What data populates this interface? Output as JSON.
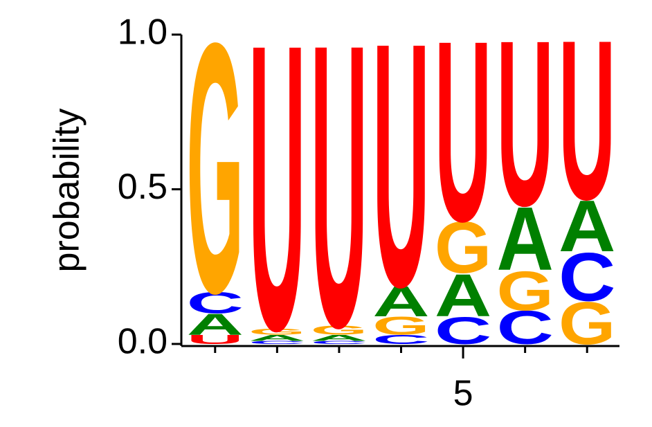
{
  "chart_data": {
    "type": "logo",
    "ylabel": "probability",
    "x": [
      1,
      2,
      3,
      4,
      5,
      6,
      7
    ],
    "series": [
      {
        "name": "A",
        "color": "#008000",
        "values": [
          0.07,
          0.02,
          0.02,
          0.1,
          0.14,
          0.21,
          0.17
        ]
      },
      {
        "name": "C",
        "color": "#0000ff",
        "values": [
          0.07,
          0.01,
          0.01,
          0.03,
          0.09,
          0.11,
          0.16
        ]
      },
      {
        "name": "G",
        "color": "#ffa500",
        "values": [
          0.83,
          0.02,
          0.03,
          0.06,
          0.17,
          0.13,
          0.14
        ]
      },
      {
        "name": "U",
        "color": "#ff0000",
        "values": [
          0.03,
          0.95,
          0.94,
          0.81,
          0.6,
          0.55,
          0.53
        ]
      }
    ],
    "xlim": [
      0.5,
      7.5
    ],
    "xticks": [
      5
    ],
    "xminorticks": [
      1,
      2,
      3,
      4,
      6,
      7
    ],
    "ylim": [
      0,
      1
    ],
    "yticks": [
      {
        "value": 0,
        "label": "0.0"
      },
      {
        "value": 0.5,
        "label": "0.5"
      },
      {
        "value": 1,
        "label": "1.0"
      }
    ]
  }
}
